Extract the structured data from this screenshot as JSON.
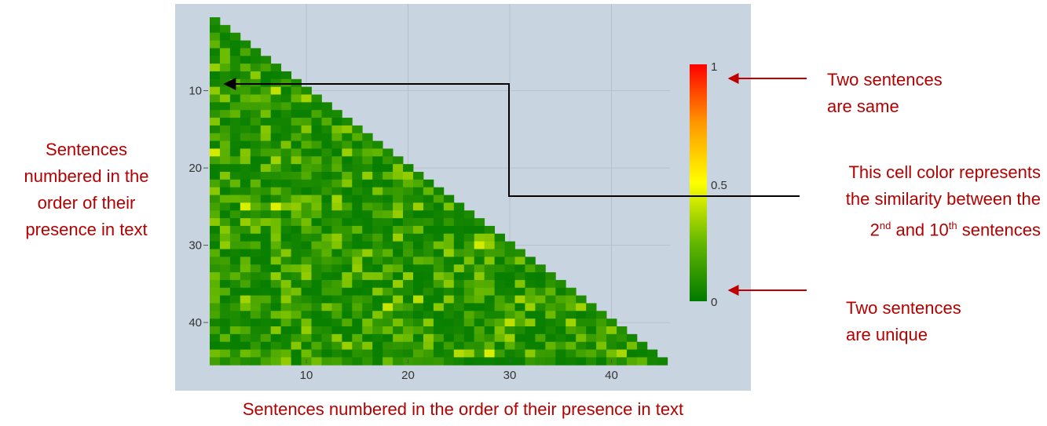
{
  "chart_data": {
    "type": "heatmap",
    "title": "",
    "n": 45,
    "x_label": "Sentences numbered in the order of their presence in text",
    "y_label_lines": [
      "Sentences",
      "numbered in the",
      "order of their",
      "presence in text"
    ],
    "x_ticks": [
      10,
      20,
      30,
      40
    ],
    "y_ticks": [
      10,
      20,
      30,
      40
    ],
    "x_tick_labels": [
      "10",
      "20",
      "30",
      "40"
    ],
    "y_tick_labels": [
      "10",
      "20",
      "30",
      "40"
    ],
    "colorscale": {
      "min": 0,
      "max": 1,
      "tick_labels": [
        "1",
        "0.5",
        "0"
      ],
      "colors": [
        "#007a00",
        "#66b800",
        "#ffff00",
        "#ff9900",
        "#ff0000"
      ]
    },
    "triangle": "lower",
    "typical_similarity_range": [
      0.02,
      0.35
    ],
    "highlighted_cell": {
      "x": 2,
      "y": 10
    },
    "grid": true
  },
  "annotations": {
    "same": [
      "Two sentences",
      "are same"
    ],
    "unique": [
      "Two sentences",
      "are unique"
    ],
    "cell_note_lines": [
      "This cell color represents",
      "the similarity between the"
    ],
    "cell_note_third": {
      "n1": "2",
      "s1": "nd",
      "mid": " and 10",
      "s2": "th",
      "end": " sentences"
    }
  },
  "colors": {
    "annotation": "#b30000",
    "panel_bg": "#c8d5e0",
    "arrow_red": "#c00000",
    "arrow_black": "#000000"
  }
}
